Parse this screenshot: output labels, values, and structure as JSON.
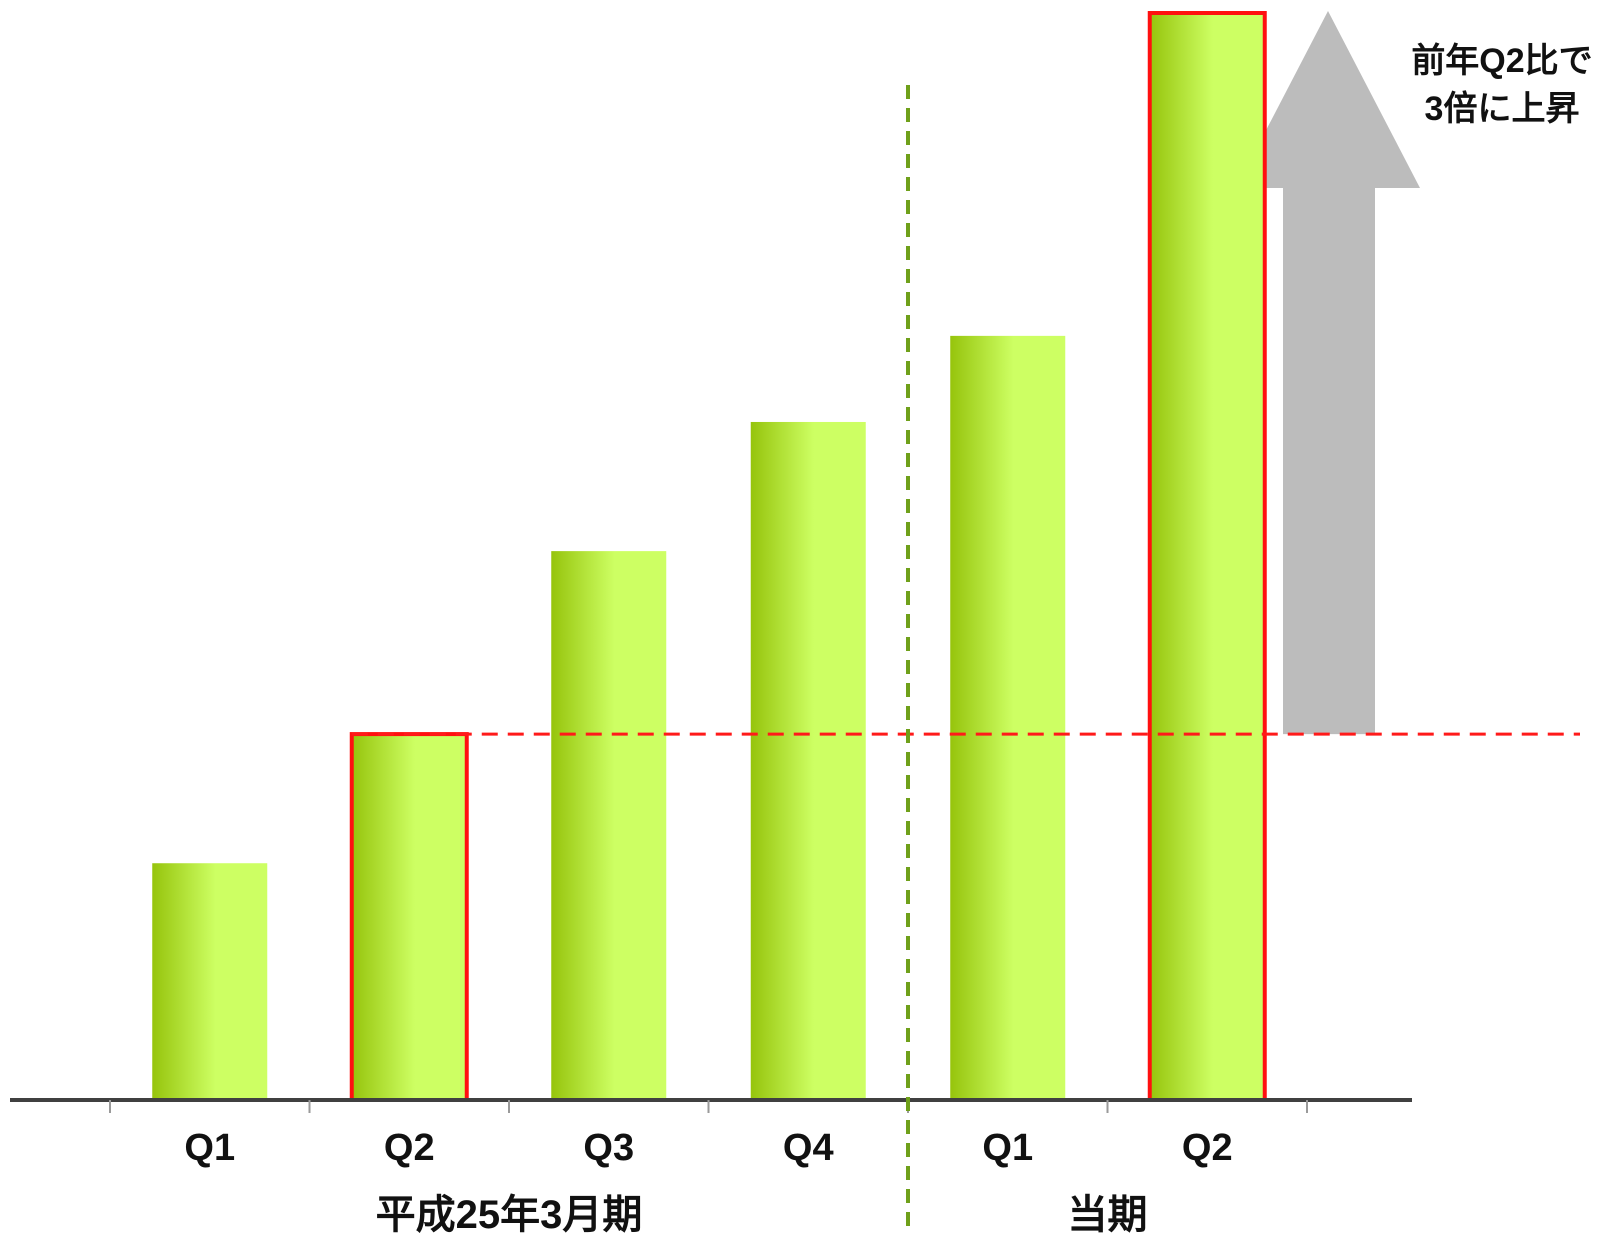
{
  "chart_data": {
    "type": "bar",
    "categories": [
      "Q1",
      "Q2",
      "Q3",
      "Q4",
      "Q1",
      "Q2"
    ],
    "values": [
      22,
      34,
      51,
      63,
      71,
      101
    ],
    "highlighted": [
      1,
      5
    ],
    "groups": [
      {
        "label": "平成25年3月期",
        "categories": [
          0,
          1,
          2,
          3
        ]
      },
      {
        "label": "当期",
        "categories": [
          4,
          5
        ]
      }
    ],
    "reference_line": {
      "value": 34,
      "style": "dashed",
      "color": "#ff1a1a"
    },
    "annotation": {
      "lines": [
        "前年Q2比で",
        "3倍に上昇"
      ]
    },
    "title": "",
    "xlabel": "",
    "ylabel": "",
    "ylim": [
      0,
      101
    ],
    "grid": false,
    "legend": "none"
  },
  "colors": {
    "bar_dark": "#96c40c",
    "bar_light": "#cdff63",
    "highlight_border": "#ff1010",
    "axis": "#404040",
    "divider": "#6fa01a",
    "arrow": "#b8b8b8"
  }
}
